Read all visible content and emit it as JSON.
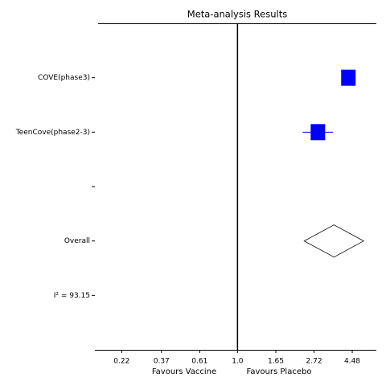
{
  "chart_data": {
    "type": "forest",
    "title": "Meta-analysis Results",
    "categories": [
      "COVE(phase3)",
      "TeenCove(phase2-3)",
      null,
      "Overall",
      "I² = 93.15"
    ],
    "values": [
      4.26,
      2.86,
      null,
      3.53,
      null
    ],
    "lower": [
      4.05,
      2.34,
      null,
      2.39,
      null
    ],
    "upper": [
      4.5,
      3.49,
      null,
      5.2,
      null
    ],
    "markers": [
      "square",
      "square",
      null,
      "diamond",
      null
    ],
    "color": "#0000ff",
    "reference": 1,
    "log_x": true,
    "xlim": [
      0.155,
      6.14
    ],
    "xticks": [
      0.22,
      0.37,
      0.61,
      {
        "value": 1,
        "label": "1.0"
      },
      1.65,
      2.72,
      4.48
    ],
    "xlabel_left": "Favours Vaccine",
    "xlabel_right": "Favours Placebo"
  }
}
